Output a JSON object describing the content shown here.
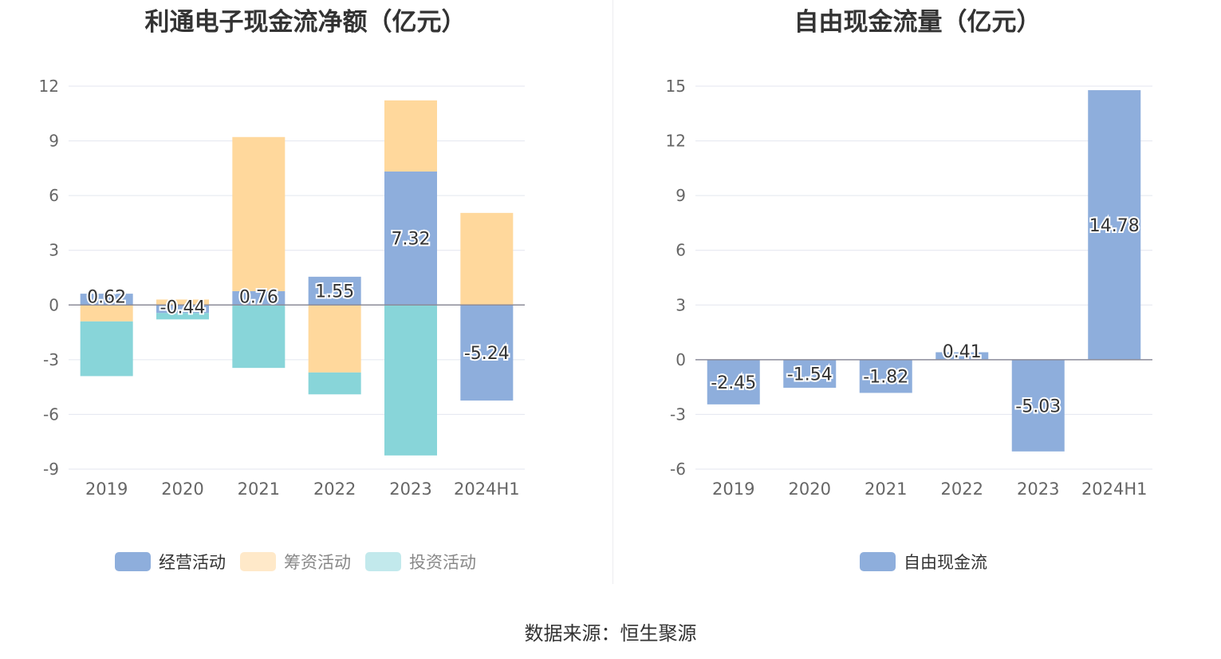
{
  "chart_data": [
    {
      "type": "bar",
      "stacked": true,
      "title": "利通电子现金流净额（亿元）",
      "categories": [
        "2019",
        "2020",
        "2021",
        "2022",
        "2023",
        "2024H1"
      ],
      "ylim": [
        -9,
        12
      ],
      "yticks": [
        12,
        9,
        6,
        3,
        0,
        -3,
        -6,
        -9
      ],
      "grid": true,
      "legend_position": "bottom-center",
      "series": [
        {
          "name": "经营活动",
          "color": "#8eaedc",
          "values": [
            0.62,
            -0.44,
            0.76,
            1.55,
            7.32,
            -5.24
          ],
          "labels": [
            "0.62",
            "-0.44",
            "0.76",
            "1.55",
            "7.32",
            "-5.24"
          ]
        },
        {
          "name": "筹资活动",
          "color": "#ffd89c",
          "values": [
            -0.9,
            0.3,
            8.45,
            -3.7,
            3.9,
            5.05
          ]
        },
        {
          "name": "投资活动",
          "color": "#88d5d9",
          "values": [
            -3.0,
            -0.35,
            -3.45,
            -1.2,
            -8.25,
            0
          ]
        }
      ]
    },
    {
      "type": "bar",
      "title": "自由现金流量（亿元）",
      "categories": [
        "2019",
        "2020",
        "2021",
        "2022",
        "2023",
        "2024H1"
      ],
      "ylim": [
        -6,
        15
      ],
      "yticks": [
        15,
        12,
        9,
        6,
        3,
        0,
        -3,
        -6
      ],
      "grid": true,
      "legend_position": "bottom-center",
      "series": [
        {
          "name": "自由现金流",
          "color": "#8eaedc",
          "values": [
            -2.45,
            -1.54,
            -1.82,
            0.41,
            -5.03,
            14.78
          ],
          "labels": [
            "-2.45",
            "-1.54",
            "-1.82",
            "0.41",
            "-5.03",
            "14.78"
          ]
        }
      ]
    }
  ],
  "legend_colors": {
    "operating": "#8eaedc",
    "financing": "#ffe9c9",
    "investing": "#c2e9ec",
    "free_cash_flow": "#8eaedc"
  },
  "source": "数据来源：恒生聚源"
}
